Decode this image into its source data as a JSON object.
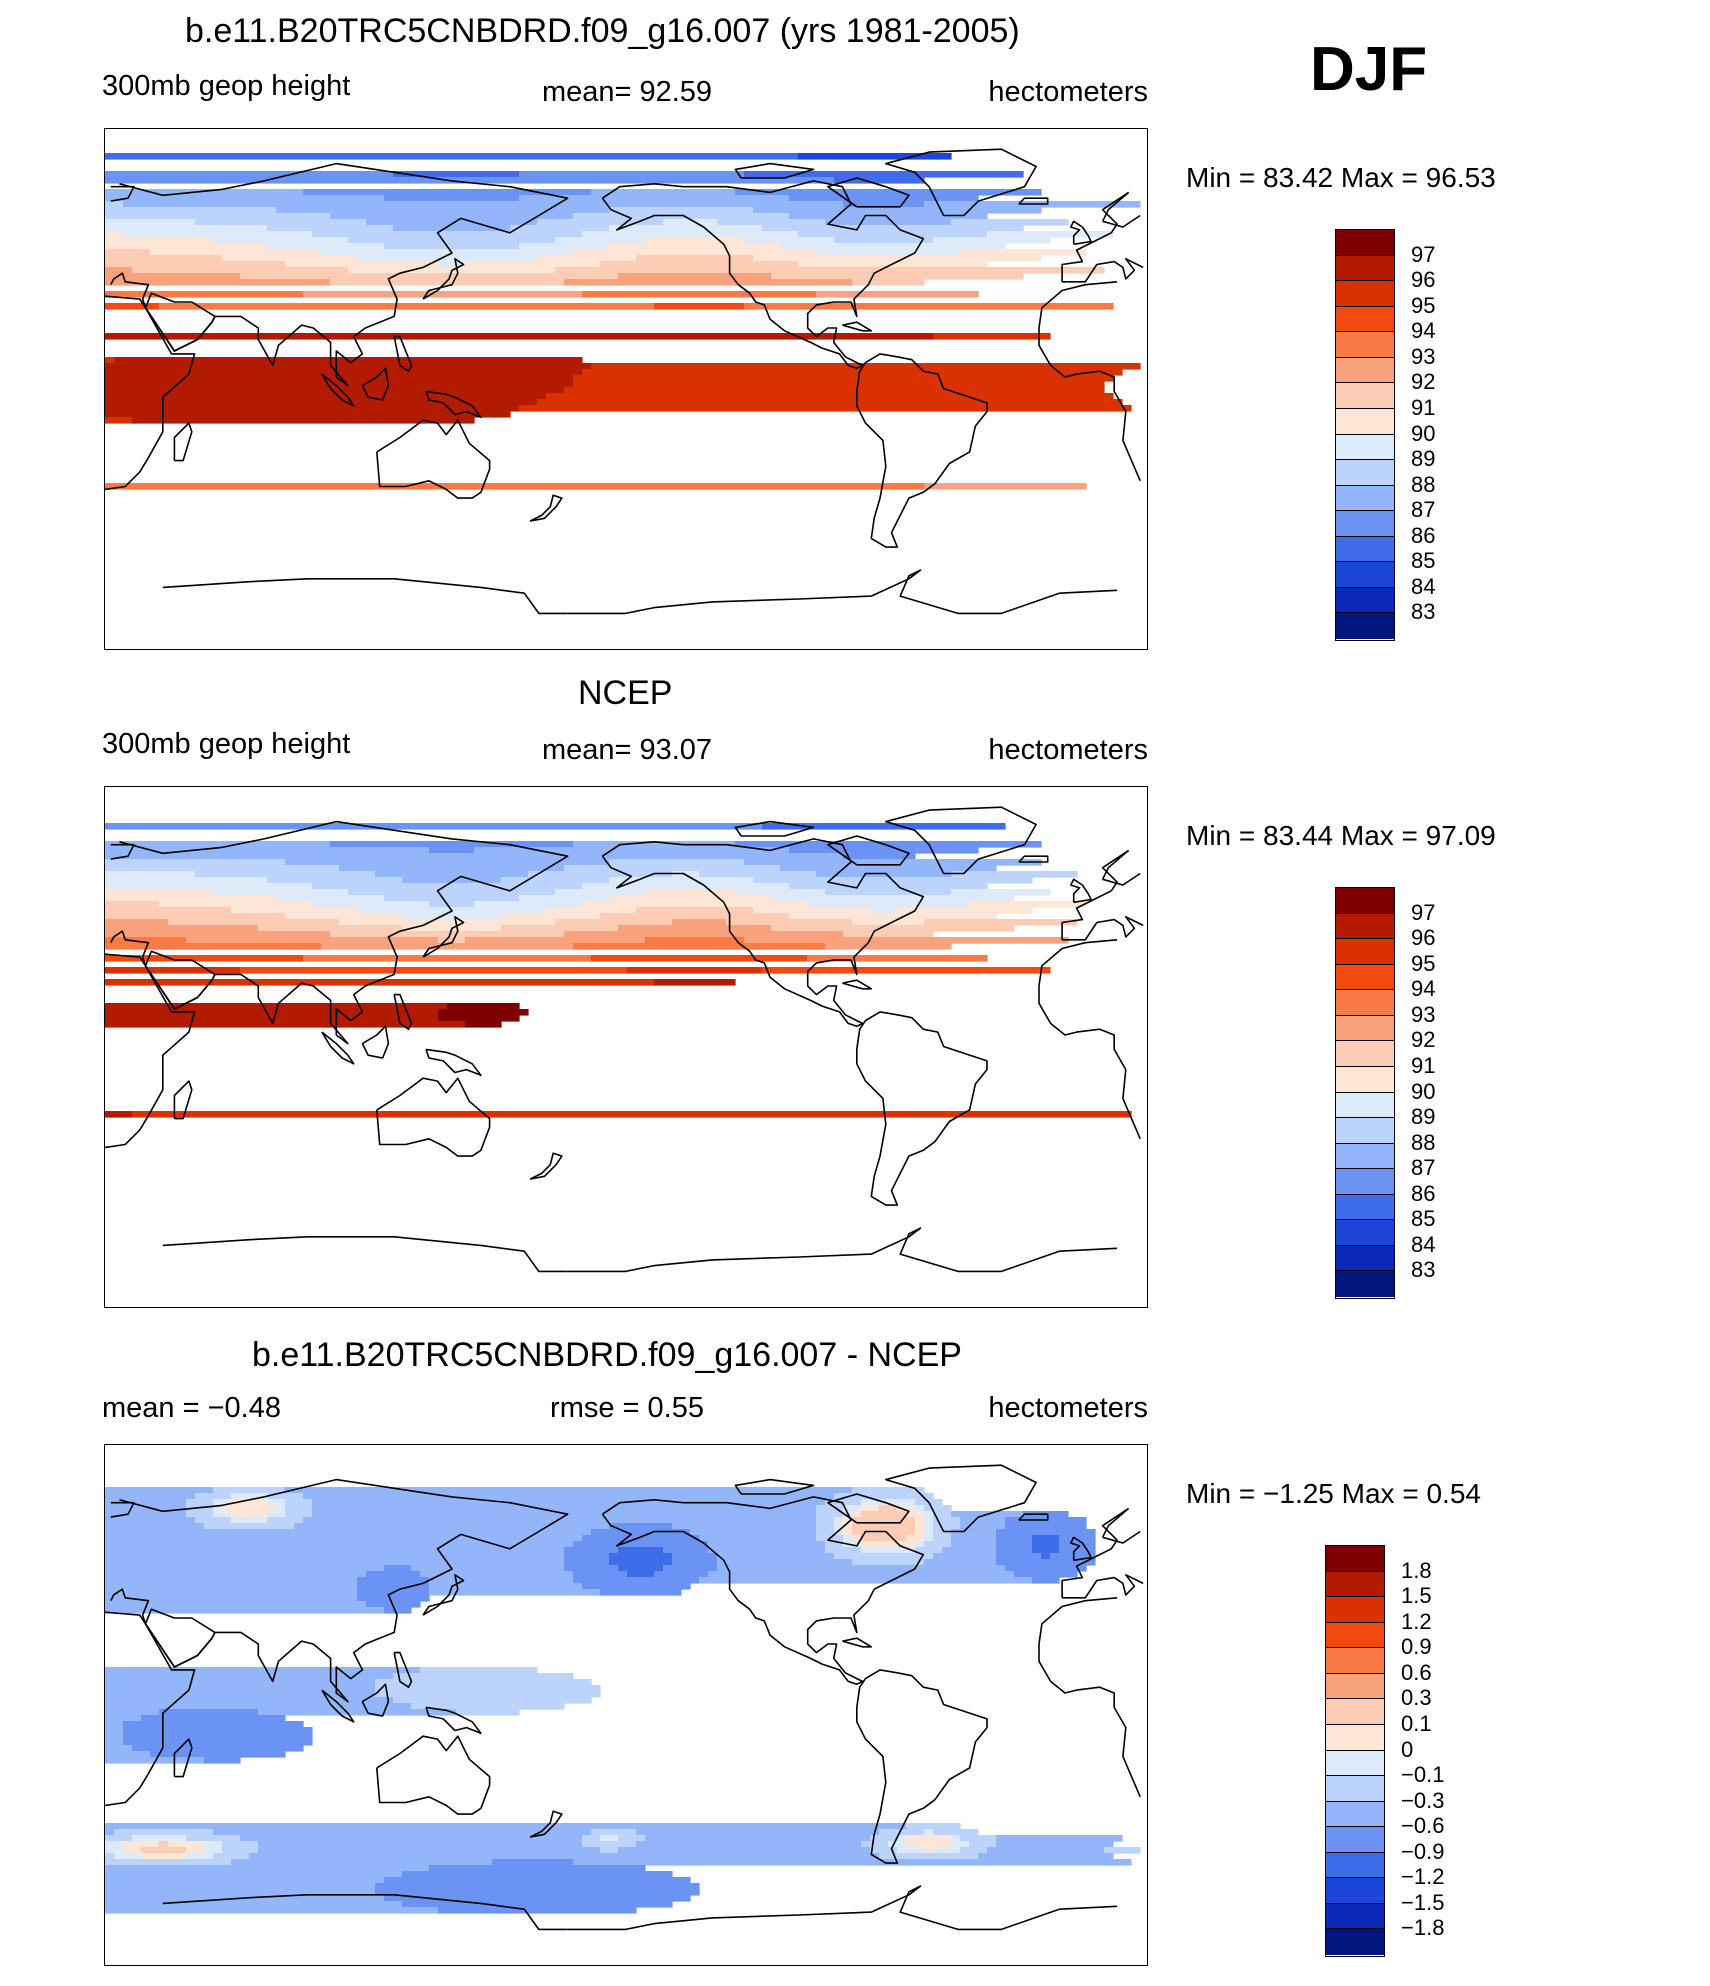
{
  "season": "DJF",
  "panels": [
    {
      "title": "b.e11.B20TRC5CNBDRD.f09_g16.007 (yrs 1981-2005)",
      "left_label": "300mb  geop  height",
      "center_label": "mean=   92.59",
      "right_label": "hectometers",
      "minmax": "Min =   83.42  Max =   96.53",
      "field": "model"
    },
    {
      "title": "NCEP",
      "left_label": "300mb  geop  height",
      "center_label": "mean=   93.07",
      "right_label": "hectometers",
      "minmax": "Min =   83.44  Max =   97.09",
      "field": "obs"
    },
    {
      "title": "b.e11.B20TRC5CNBDRD.f09_g16.007 - NCEP",
      "left_label": "mean =   −0.48",
      "center_label": "rmse =     0.55",
      "right_label": "hectometers",
      "minmax": "Min =   −1.25  Max =     0.54",
      "field": "diff"
    }
  ],
  "colorbars": {
    "height": {
      "labels": [
        "97",
        "96",
        "95",
        "94",
        "93",
        "92",
        "91",
        "90",
        "89",
        "88",
        "87",
        "86",
        "85",
        "84",
        "83"
      ],
      "colors": [
        "#7f0000",
        "#b31b00",
        "#d93200",
        "#f24a0e",
        "#fa7a46",
        "#f8a37e",
        "#fcccb4",
        "#fde6d6",
        "#dceafa",
        "#bcd3fb",
        "#93b5fa",
        "#6b93f4",
        "#3f6ce8",
        "#1c46d8",
        "#0c2ab8",
        "#00157e"
      ]
    },
    "diff": {
      "labels": [
        "1.8",
        "1.5",
        "1.2",
        "0.9",
        "0.6",
        "0.3",
        "0.1",
        "0",
        "−0.1",
        "−0.3",
        "−0.6",
        "−0.9",
        "−1.2",
        "−1.5",
        "−1.8"
      ],
      "colors": [
        "#7f0000",
        "#b31b00",
        "#d93200",
        "#f24a0e",
        "#fa7a46",
        "#f8a37e",
        "#fcccb4",
        "#fde6d6",
        "#dceafa",
        "#bcd3fb",
        "#93b5fa",
        "#6b93f4",
        "#3f6ce8",
        "#1c46d8",
        "#0c2ab8",
        "#00157e"
      ]
    }
  }
}
